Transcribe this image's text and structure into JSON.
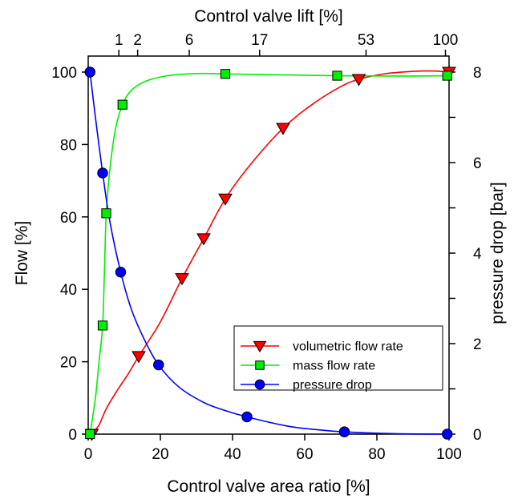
{
  "chart_data": {
    "type": "line",
    "title": "",
    "xlabel": "Control valve area ratio [%]",
    "ylabel": "Flow [%]",
    "y2label": "pressure drop [bar]",
    "x2label": "Control valve lift [%]",
    "xlim": [
      0,
      100
    ],
    "ylim": [
      0,
      100
    ],
    "y2lim": [
      0,
      8
    ],
    "x_ticks": [
      0,
      20,
      40,
      60,
      80,
      100
    ],
    "y_ticks": [
      0,
      20,
      40,
      60,
      80,
      100
    ],
    "y2_ticks": [
      0,
      2,
      4,
      6,
      8
    ],
    "top_axis": {
      "ticks": [
        {
          "label": "1",
          "area": 8.5
        },
        {
          "label": "2",
          "area": 13.7
        },
        {
          "label": "6",
          "area": 28.0
        },
        {
          "label": "17",
          "area": 47.5
        },
        {
          "label": "53",
          "area": 77.0
        },
        {
          "label": "100",
          "area": 99.0
        }
      ]
    },
    "grid": false,
    "legend_position": "bottom-right",
    "series": [
      {
        "name": "volumetric flow rate",
        "color": "#ff0000",
        "marker": "triangle-down",
        "axis": "left",
        "points": [
          [
            1,
            0
          ],
          [
            14,
            21.5
          ],
          [
            26,
            43
          ],
          [
            32,
            54
          ],
          [
            38,
            65
          ],
          [
            54,
            84.5
          ],
          [
            75,
            98
          ],
          [
            100,
            100
          ]
        ],
        "curve": [
          [
            1,
            0
          ],
          [
            3,
            2.5
          ],
          [
            5,
            7
          ],
          [
            8,
            12
          ],
          [
            11,
            16.5
          ],
          [
            14,
            21.5
          ],
          [
            20,
            31
          ],
          [
            26,
            43
          ],
          [
            32,
            54
          ],
          [
            38,
            65
          ],
          [
            45,
            74.5
          ],
          [
            54,
            84.5
          ],
          [
            62,
            91
          ],
          [
            70,
            96
          ],
          [
            75,
            98
          ],
          [
            82,
            99.5
          ],
          [
            90,
            100.2
          ],
          [
            96,
            100.3
          ],
          [
            100,
            100
          ]
        ]
      },
      {
        "name": "mass flow rate",
        "color": "#00ee00",
        "marker": "square",
        "axis": "left",
        "points": [
          [
            0.5,
            0
          ],
          [
            4,
            30
          ],
          [
            5,
            61
          ],
          [
            9.5,
            91
          ],
          [
            38,
            99.5
          ],
          [
            69,
            99
          ],
          [
            99.5,
            99
          ]
        ],
        "curve": [
          [
            0.5,
            0
          ],
          [
            2,
            10
          ],
          [
            3,
            20
          ],
          [
            4,
            30
          ],
          [
            4.5,
            45
          ],
          [
            5,
            61
          ],
          [
            6,
            73
          ],
          [
            7.5,
            84
          ],
          [
            9.5,
            91
          ],
          [
            12,
            95
          ],
          [
            16,
            97.5
          ],
          [
            22,
            99
          ],
          [
            30,
            99.6
          ],
          [
            38,
            99.5
          ],
          [
            50,
            99.3
          ],
          [
            69,
            99
          ],
          [
            85,
            98.9
          ],
          [
            99.5,
            99
          ]
        ]
      },
      {
        "name": "pressure drop",
        "color": "#0000ff",
        "marker": "circle",
        "axis": "right",
        "points": [
          [
            0.5,
            8
          ],
          [
            4,
            5.77
          ],
          [
            9,
            3.58
          ],
          [
            19.5,
            1.53
          ],
          [
            44,
            0.38
          ],
          [
            71,
            0.05
          ],
          [
            99.5,
            0
          ]
        ],
        "curve": [
          [
            0.5,
            8
          ],
          [
            2,
            7.0
          ],
          [
            4,
            5.77
          ],
          [
            6,
            4.7
          ],
          [
            9,
            3.58
          ],
          [
            12,
            2.75
          ],
          [
            15.5,
            2.1
          ],
          [
            19.5,
            1.53
          ],
          [
            25,
            1.05
          ],
          [
            32,
            0.7
          ],
          [
            38,
            0.52
          ],
          [
            44,
            0.38
          ],
          [
            55,
            0.18
          ],
          [
            63,
            0.1
          ],
          [
            71,
            0.05
          ],
          [
            85,
            0.01
          ],
          [
            99.5,
            0
          ]
        ]
      }
    ]
  }
}
